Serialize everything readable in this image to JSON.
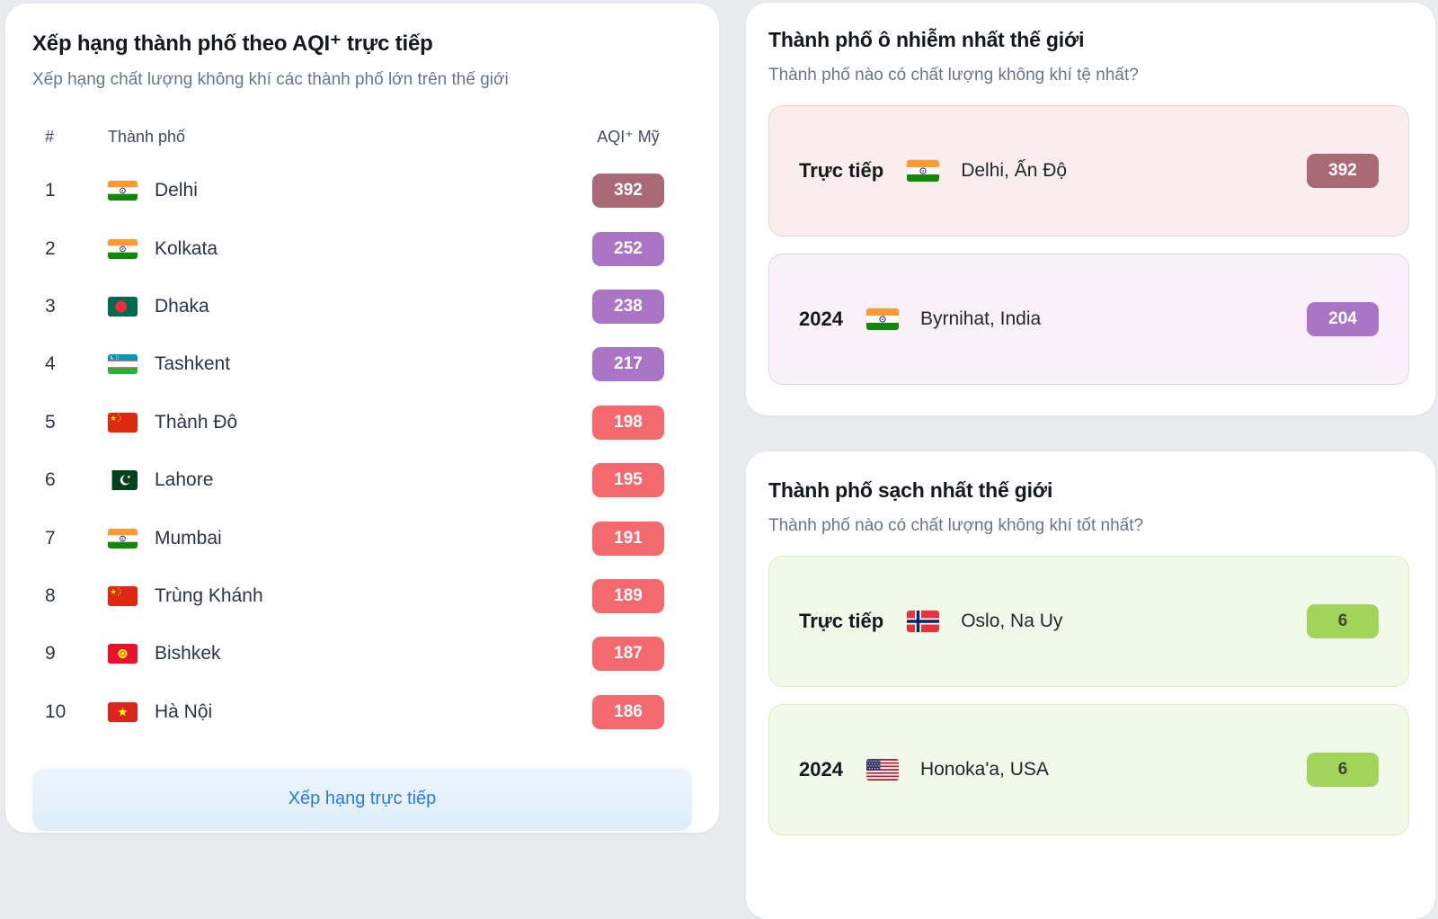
{
  "colors": {
    "hazardous": "#a96a76",
    "very_unhealthy": "#aa75c4",
    "unhealthy": "#f4696e",
    "good": "#a2d45b",
    "good_text": "#3c4a2e",
    "accent_blue": "#2a7cd5"
  },
  "themes": {
    "rose": {
      "bg": "#faeded",
      "border": "#eed4d4"
    },
    "lavender": {
      "bg": "#f9f0fb",
      "border": "#e7d3ef"
    },
    "green": {
      "bg": "#f1f9e9",
      "border": "#ddeec1"
    }
  },
  "ranking_panel": {
    "title": "Xếp hạng thành phố theo AQI⁺ trực tiếp",
    "subtitle": "Xếp hạng chất lượng không khí các thành phố lớn trên thế giới",
    "columns": {
      "rank": "#",
      "city": "Thành phố",
      "aqi": "AQI⁺ Mỹ"
    },
    "rows": [
      {
        "rank": "1",
        "city": "Delhi",
        "country": "in",
        "aqi": "392",
        "level": "hazardous"
      },
      {
        "rank": "2",
        "city": "Kolkata",
        "country": "in",
        "aqi": "252",
        "level": "very_unhealthy"
      },
      {
        "rank": "3",
        "city": "Dhaka",
        "country": "bd",
        "aqi": "238",
        "level": "very_unhealthy"
      },
      {
        "rank": "4",
        "city": "Tashkent",
        "country": "uz",
        "aqi": "217",
        "level": "very_unhealthy"
      },
      {
        "rank": "5",
        "city": "Thành Đô",
        "country": "cn",
        "aqi": "198",
        "level": "unhealthy"
      },
      {
        "rank": "6",
        "city": "Lahore",
        "country": "pk",
        "aqi": "195",
        "level": "unhealthy"
      },
      {
        "rank": "7",
        "city": "Mumbai",
        "country": "in",
        "aqi": "191",
        "level": "unhealthy"
      },
      {
        "rank": "8",
        "city": "Trùng Khánh",
        "country": "cn",
        "aqi": "189",
        "level": "unhealthy"
      },
      {
        "rank": "9",
        "city": "Bishkek",
        "country": "kg",
        "aqi": "187",
        "level": "unhealthy"
      },
      {
        "rank": "10",
        "city": "Hà Nội",
        "country": "vn",
        "aqi": "186",
        "level": "unhealthy"
      }
    ],
    "footer_button": "Xếp hạng trực tiếp"
  },
  "most_polluted_panel": {
    "title": "Thành phố ô nhiễm nhất thế giới",
    "subtitle": "Thành phố nào có chất lượng không khí tệ nhất?",
    "cards": [
      {
        "label": "Trực tiếp",
        "city": "Delhi, Ấn Độ",
        "country": "in",
        "aqi": "392",
        "level": "hazardous",
        "theme": "rose"
      },
      {
        "label": "2024",
        "city": "Byrnihat, India",
        "country": "in",
        "aqi": "204",
        "level": "very_unhealthy",
        "theme": "lavender"
      }
    ]
  },
  "cleanest_panel": {
    "title": "Thành phố sạch nhất thế giới",
    "subtitle": "Thành phố nào có chất lượng không khí tốt nhất?",
    "cards": [
      {
        "label": "Trực tiếp",
        "city": "Oslo, Na Uy",
        "country": "no",
        "aqi": "6",
        "level": "good",
        "theme": "green"
      },
      {
        "label": "2024",
        "city": "Honoka'a, USA",
        "country": "us",
        "aqi": "6",
        "level": "good",
        "theme": "green"
      }
    ]
  }
}
